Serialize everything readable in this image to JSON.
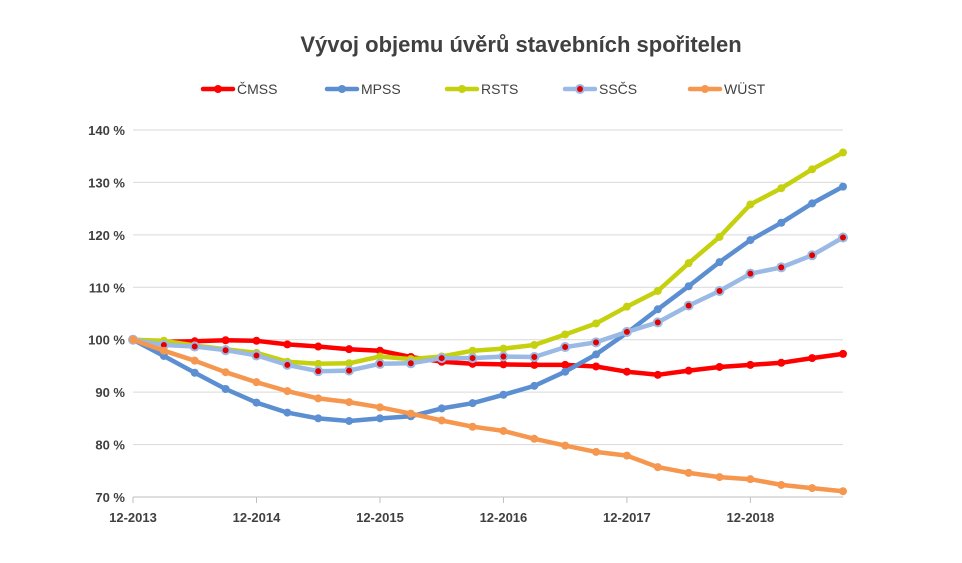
{
  "chart_data": {
    "type": "line",
    "title": "Vývoj objemu úvěrů stavebních spořitelen",
    "xlabel": "",
    "ylabel": "",
    "ylim": [
      70,
      140
    ],
    "y_ticks": [
      "70 %",
      "80 %",
      "90 %",
      "100 %",
      "110 %",
      "120 %",
      "130 %",
      "140 %"
    ],
    "y_tick_values": [
      70,
      80,
      90,
      100,
      110,
      120,
      130,
      140
    ],
    "x_tick_labels": [
      "12-2013",
      "12-2014",
      "12-2015",
      "12-2016",
      "12-2017",
      "12-2018"
    ],
    "x_tick_positions": [
      0,
      4,
      8,
      12,
      16,
      20
    ],
    "x_points": 24,
    "grid": "horizontal",
    "legend_position": "top",
    "series": [
      {
        "name": "ČMSS",
        "color": "#ff0000",
        "marker": "#ff0000",
        "values": [
          100,
          99.6,
          99.7,
          99.9,
          99.8,
          99.1,
          98.7,
          98.2,
          97.9,
          96.7,
          95.8,
          95.4,
          95.3,
          95.2,
          95.2,
          94.9,
          93.9,
          93.3,
          94.1,
          94.8,
          95.2,
          95.6,
          96.5,
          97.3
        ]
      },
      {
        "name": "MPSS",
        "color": "#5b8fd1",
        "marker": "#5b8fd1",
        "values": [
          100,
          96.9,
          93.7,
          90.6,
          88.0,
          86.1,
          85.0,
          84.5,
          85.0,
          85.4,
          86.9,
          87.9,
          89.5,
          91.2,
          93.9,
          97.2,
          101.3,
          105.8,
          110.2,
          114.8,
          119.0,
          122.3,
          126.0,
          129.2
        ]
      },
      {
        "name": "RSTS",
        "color": "#c5d10e",
        "marker": "#c5d10e",
        "values": [
          100,
          99.8,
          98.9,
          98.2,
          97.5,
          95.8,
          95.4,
          95.5,
          96.8,
          96.3,
          96.8,
          97.9,
          98.3,
          99.0,
          101.0,
          103.1,
          106.3,
          109.3,
          114.6,
          119.6,
          125.8,
          128.9,
          132.5,
          135.7
        ]
      },
      {
        "name": "SSČS",
        "color": "#9ab9e4",
        "marker": "#e00000",
        "values": [
          100,
          99.0,
          98.7,
          98.0,
          97.0,
          95.2,
          94.0,
          94.1,
          95.4,
          95.5,
          96.5,
          96.5,
          96.8,
          96.7,
          98.6,
          99.5,
          101.5,
          103.3,
          106.5,
          109.3,
          112.6,
          113.8,
          116.1,
          119.5
        ]
      },
      {
        "name": "WÜST",
        "color": "#f6974f",
        "marker": "#f6974f",
        "values": [
          100,
          97.9,
          96.0,
          93.8,
          91.9,
          90.2,
          88.8,
          88.1,
          87.1,
          85.9,
          84.6,
          83.4,
          82.6,
          81.1,
          79.8,
          78.6,
          77.9,
          75.7,
          74.6,
          73.8,
          73.4,
          72.3,
          71.7,
          71.1
        ]
      }
    ]
  }
}
